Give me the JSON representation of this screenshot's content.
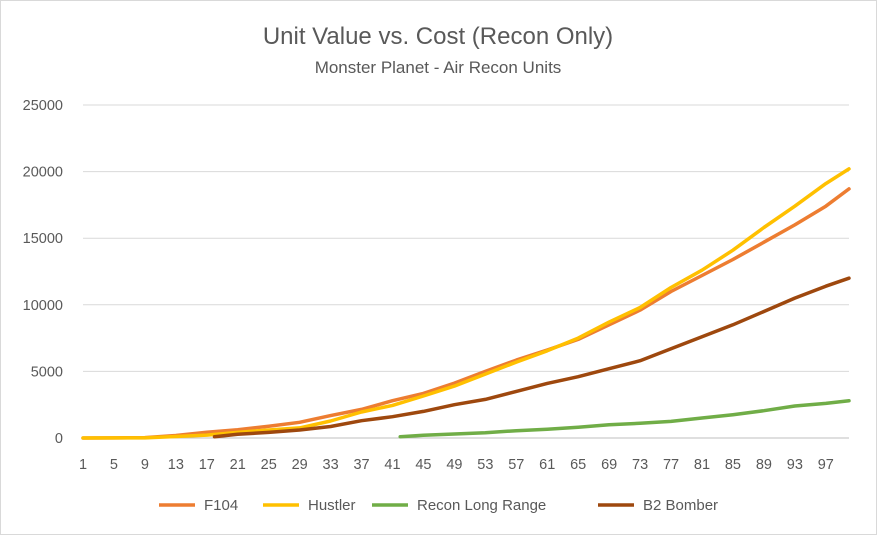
{
  "chart_data": {
    "type": "line",
    "title": "Unit Value vs. Cost (Recon Only)",
    "subtitle": "Monster Planet - Air Recon Units",
    "xlabel": "",
    "ylabel": "",
    "x_range": [
      1,
      100
    ],
    "x_tick_labels": [
      "1",
      "5",
      "9",
      "13",
      "17",
      "21",
      "25",
      "29",
      "33",
      "37",
      "41",
      "45",
      "49",
      "53",
      "57",
      "61",
      "65",
      "69",
      "73",
      "77",
      "81",
      "85",
      "89",
      "93",
      "97"
    ],
    "ylim": [
      0,
      25000
    ],
    "y_tick_labels": [
      "0",
      "5000",
      "10000",
      "15000",
      "20000",
      "25000"
    ],
    "y_ticks": [
      0,
      5000,
      10000,
      15000,
      20000,
      25000
    ],
    "grid": "horizontal",
    "legend_position": "bottom",
    "series": [
      {
        "name": "F104",
        "color": "#ED7D31",
        "points": [
          [
            1,
            0
          ],
          [
            5,
            5
          ],
          [
            9,
            30
          ],
          [
            13,
            190
          ],
          [
            17,
            430
          ],
          [
            21,
            620
          ],
          [
            25,
            880
          ],
          [
            29,
            1180
          ],
          [
            33,
            1680
          ],
          [
            37,
            2150
          ],
          [
            41,
            2800
          ],
          [
            45,
            3350
          ],
          [
            49,
            4120
          ],
          [
            53,
            5000
          ],
          [
            57,
            5850
          ],
          [
            61,
            6600
          ],
          [
            65,
            7400
          ],
          [
            69,
            8500
          ],
          [
            73,
            9600
          ],
          [
            77,
            11000
          ],
          [
            81,
            12200
          ],
          [
            85,
            13400
          ],
          [
            89,
            14700
          ],
          [
            93,
            16000
          ],
          [
            97,
            17400
          ],
          [
            100,
            18700
          ]
        ]
      },
      {
        "name": "Hustler",
        "color": "#FFC000",
        "points": [
          [
            1,
            0
          ],
          [
            9,
            10
          ],
          [
            17,
            220
          ],
          [
            21,
            420
          ],
          [
            25,
            600
          ],
          [
            29,
            760
          ],
          [
            33,
            1280
          ],
          [
            37,
            1950
          ],
          [
            41,
            2450
          ],
          [
            45,
            3150
          ],
          [
            49,
            3900
          ],
          [
            53,
            4800
          ],
          [
            57,
            5700
          ],
          [
            61,
            6550
          ],
          [
            65,
            7500
          ],
          [
            69,
            8700
          ],
          [
            73,
            9800
          ],
          [
            77,
            11300
          ],
          [
            81,
            12600
          ],
          [
            85,
            14100
          ],
          [
            89,
            15800
          ],
          [
            93,
            17400
          ],
          [
            97,
            19100
          ],
          [
            100,
            20200
          ]
        ]
      },
      {
        "name": "Recon Long Range",
        "color": "#70AD47",
        "points": [
          [
            42,
            100
          ],
          [
            45,
            200
          ],
          [
            49,
            300
          ],
          [
            53,
            400
          ],
          [
            57,
            550
          ],
          [
            61,
            650
          ],
          [
            65,
            800
          ],
          [
            69,
            1000
          ],
          [
            73,
            1100
          ],
          [
            77,
            1250
          ],
          [
            81,
            1500
          ],
          [
            85,
            1750
          ],
          [
            89,
            2050
          ],
          [
            93,
            2400
          ],
          [
            97,
            2600
          ],
          [
            100,
            2800
          ]
        ]
      },
      {
        "name": "B2 Bomber",
        "color": "#9E480E",
        "points": [
          [
            18,
            100
          ],
          [
            21,
            280
          ],
          [
            25,
            420
          ],
          [
            29,
            600
          ],
          [
            33,
            860
          ],
          [
            37,
            1300
          ],
          [
            41,
            1600
          ],
          [
            45,
            2000
          ],
          [
            49,
            2500
          ],
          [
            53,
            2900
          ],
          [
            57,
            3500
          ],
          [
            61,
            4100
          ],
          [
            65,
            4600
          ],
          [
            69,
            5200
          ],
          [
            73,
            5800
          ],
          [
            77,
            6700
          ],
          [
            81,
            7600
          ],
          [
            85,
            8500
          ],
          [
            89,
            9500
          ],
          [
            93,
            10500
          ],
          [
            97,
            11400
          ],
          [
            100,
            12000
          ]
        ]
      }
    ]
  }
}
